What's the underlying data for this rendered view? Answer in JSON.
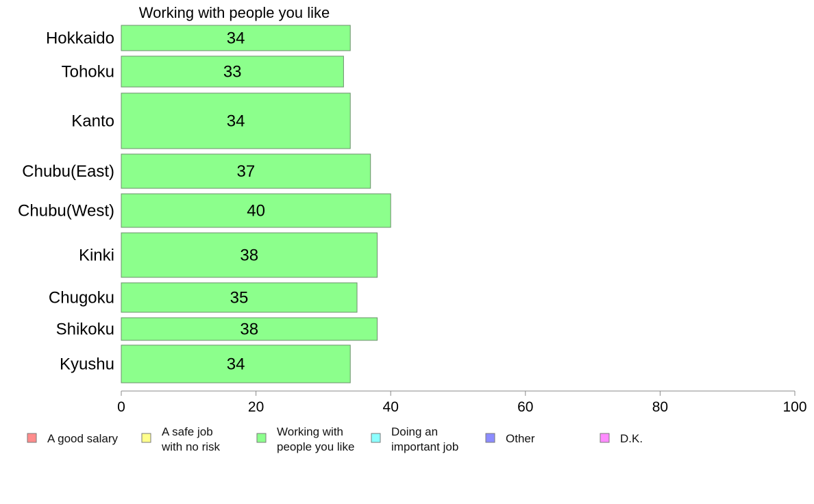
{
  "chart_data": {
    "type": "bar",
    "orientation": "horizontal",
    "title": "Working with people you like",
    "xlabel": "",
    "ylabel": "",
    "categories": [
      "Hokkaido",
      "Tohoku",
      "Kanto",
      "Chubu(East)",
      "Chubu(West)",
      "Kinki",
      "Chugoku",
      "Shikoku",
      "Kyushu"
    ],
    "values": [
      34,
      33,
      34,
      37,
      40,
      38,
      35,
      38,
      34
    ],
    "data_labels": [
      "34",
      "33",
      "34",
      "37",
      "40",
      "38",
      "35",
      "38",
      "34"
    ],
    "xlim": [
      0,
      100
    ],
    "xticks": [
      "0",
      "20",
      "40",
      "60",
      "80",
      "100"
    ],
    "bar_color": "#8cff8c",
    "grid": false,
    "legend_position": "bottom",
    "legend": [
      {
        "lines": [
          "A good salary"
        ],
        "color": "#ff8c8c"
      },
      {
        "lines": [
          "A safe job",
          "with no risk"
        ],
        "color": "#ffff8c"
      },
      {
        "lines": [
          "Working with",
          "people you like"
        ],
        "color": "#8cff8c"
      },
      {
        "lines": [
          "Doing an",
          "important job"
        ],
        "color": "#8cffff"
      },
      {
        "lines": [
          "Other"
        ],
        "color": "#8c8cff"
      },
      {
        "lines": [
          "D.K."
        ],
        "color": "#ff8cff"
      }
    ]
  }
}
